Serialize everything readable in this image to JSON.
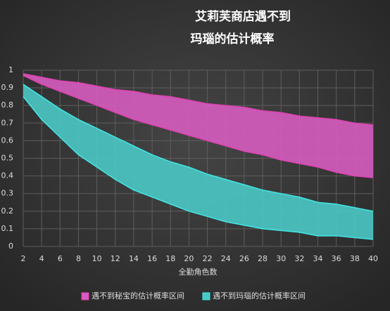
{
  "chart_data": {
    "type": "range_area",
    "title": [
      "艾莉芙商店遇不到",
      "玛瑙的估计概率"
    ],
    "x_label": "全勤角色数",
    "x": [
      2,
      4,
      6,
      8,
      10,
      12,
      14,
      16,
      18,
      20,
      22,
      24,
      26,
      28,
      30,
      32,
      34,
      36,
      38,
      40
    ],
    "xlim": [
      2,
      40
    ],
    "xticks": [
      2,
      4,
      6,
      8,
      10,
      12,
      14,
      16,
      18,
      20,
      22,
      24,
      26,
      28,
      30,
      32,
      34,
      36,
      38,
      40
    ],
    "ylim": [
      0,
      1
    ],
    "yticks": [
      0,
      0.1,
      0.2,
      0.3,
      0.4,
      0.5,
      0.6,
      0.7,
      0.8,
      0.9,
      1
    ],
    "grid": true,
    "legend": "bottom",
    "series": [
      {
        "name": "遇不到秘宝的估计概率区间",
        "color": "#e040b0",
        "fill": "#d65cc0",
        "high": [
          0.98,
          0.96,
          0.94,
          0.93,
          0.91,
          0.89,
          0.88,
          0.86,
          0.85,
          0.83,
          0.81,
          0.8,
          0.79,
          0.77,
          0.76,
          0.74,
          0.73,
          0.72,
          0.7,
          0.69
        ],
        "low": [
          0.97,
          0.92,
          0.88,
          0.84,
          0.8,
          0.76,
          0.72,
          0.69,
          0.66,
          0.63,
          0.6,
          0.57,
          0.54,
          0.52,
          0.49,
          0.47,
          0.45,
          0.42,
          0.4,
          0.39
        ]
      },
      {
        "name": "遇不到玛瑙的估计概率区间",
        "color": "#40e8e8",
        "fill": "#4ac8c4",
        "high": [
          0.92,
          0.85,
          0.78,
          0.72,
          0.67,
          0.62,
          0.57,
          0.52,
          0.48,
          0.45,
          0.41,
          0.38,
          0.35,
          0.32,
          0.3,
          0.28,
          0.25,
          0.24,
          0.22,
          0.2
        ],
        "low": [
          0.85,
          0.72,
          0.62,
          0.52,
          0.45,
          0.38,
          0.32,
          0.28,
          0.24,
          0.2,
          0.17,
          0.14,
          0.12,
          0.1,
          0.09,
          0.08,
          0.06,
          0.06,
          0.05,
          0.04
        ]
      }
    ]
  }
}
